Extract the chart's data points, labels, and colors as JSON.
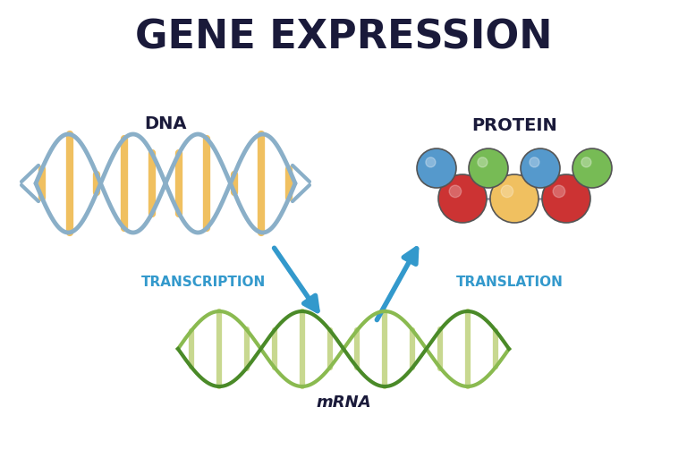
{
  "title": "GENE EXPRESSION",
  "title_fontsize": 32,
  "title_color": "#1a1a3a",
  "title_fontweight": "bold",
  "background_color": "#ffffff",
  "dna_label": "DNA",
  "mrna_label": "mRNA",
  "protein_label": "PROTEIN",
  "transcription_label": "TRANSCRIPTION",
  "translation_label": "TRANSLATION",
  "label_color": "#1aadcc",
  "dna_strand_color": "#8aafc8",
  "dna_bar_color": "#f0c060",
  "mrna_strand1_color": "#4a8a28",
  "mrna_strand2_color": "#8aba50",
  "mrna_bar_color": "#c8d890",
  "arrow_color": "#3399cc",
  "protein_top_colors": [
    "#5599cc",
    "#77bb55",
    "#5599cc",
    "#77bb55"
  ],
  "protein_bot_colors": [
    "#cc3333",
    "#f0c060",
    "#cc3333"
  ],
  "protein_connector_color": "#9999aa"
}
